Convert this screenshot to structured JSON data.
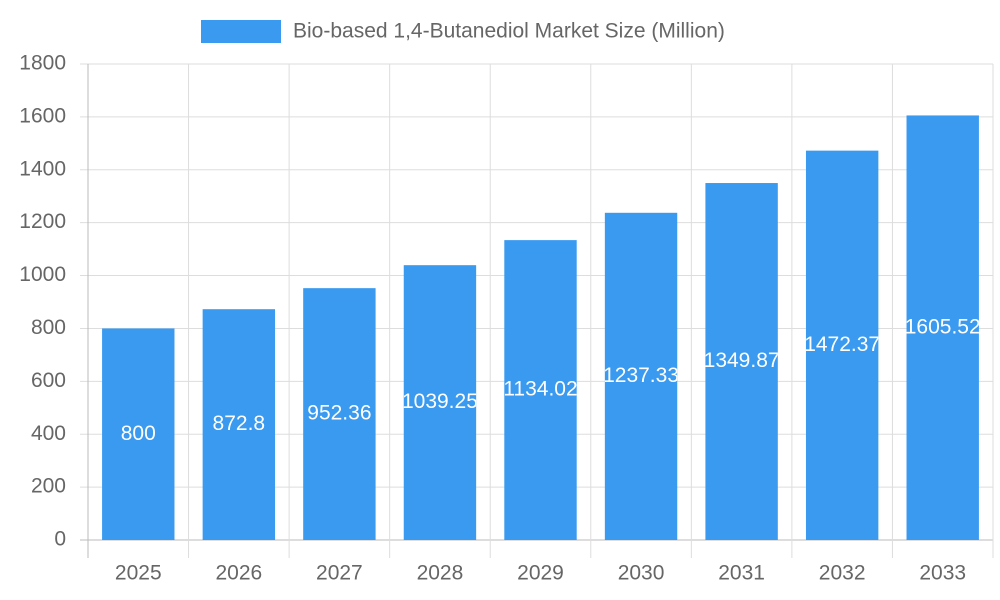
{
  "chart_data": {
    "type": "bar",
    "categories": [
      "2025",
      "2026",
      "2027",
      "2028",
      "2029",
      "2030",
      "2031",
      "2032",
      "2033"
    ],
    "series": [
      {
        "name": "Bio-based 1,4-Butanediol Market Size (Million)",
        "color": "#399af0",
        "values": [
          800,
          872.8,
          952.36,
          1039.25,
          1134.02,
          1237.33,
          1349.87,
          1472.37,
          1605.52
        ]
      }
    ],
    "ylim": [
      0,
      1800
    ],
    "yticks": [
      0,
      200,
      400,
      600,
      800,
      1000,
      1200,
      1400,
      1600,
      1800
    ],
    "grid": true
  }
}
